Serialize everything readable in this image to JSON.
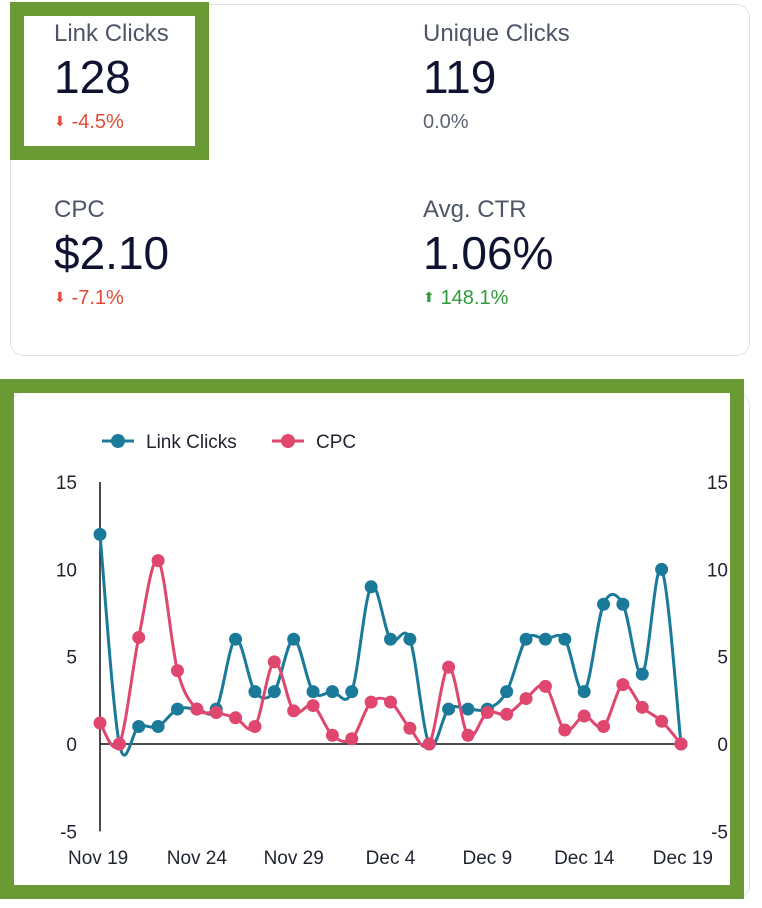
{
  "metrics": {
    "link_clicks": {
      "label": "Link Clicks",
      "value": "128",
      "change": "-4.5%",
      "direction": "down"
    },
    "unique_clicks": {
      "label": "Unique Clicks",
      "value": "119",
      "change": "0.0%",
      "direction": "none"
    },
    "cpc": {
      "label": "CPC",
      "value": "$2.10",
      "change": "-7.1%",
      "direction": "down"
    },
    "avg_ctr": {
      "label": "Avg. CTR",
      "value": "1.06%",
      "change": "148.1%",
      "direction": "up"
    }
  },
  "colors": {
    "link_clicks": "#1b7a9a",
    "cpc": "#e0476f",
    "negative": "#e24a36",
    "positive": "#2f9a3b",
    "highlight": "#6a9a33"
  },
  "chart_data": {
    "type": "line",
    "x": [
      "Nov 19",
      "Nov 20",
      "Nov 21",
      "Nov 22",
      "Nov 23",
      "Nov 24",
      "Nov 25",
      "Nov 26",
      "Nov 27",
      "Nov 28",
      "Nov 29",
      "Nov 30",
      "Dec 1",
      "Dec 2",
      "Dec 3",
      "Dec 4",
      "Dec 5",
      "Dec 6",
      "Dec 7",
      "Dec 8",
      "Dec 9",
      "Dec 10",
      "Dec 11",
      "Dec 12",
      "Dec 13",
      "Dec 14",
      "Dec 15",
      "Dec 16",
      "Dec 17",
      "Dec 18",
      "Dec 19"
    ],
    "x_tick_labels": [
      "Nov 19",
      "Nov 24",
      "Nov 29",
      "Dec 4",
      "Dec 9",
      "Dec 14",
      "Dec 19"
    ],
    "series": [
      {
        "name": "Link Clicks",
        "values": [
          12,
          0,
          1,
          1,
          2,
          2,
          2,
          6,
          3,
          3,
          6,
          3,
          3,
          3,
          9,
          6,
          6,
          0,
          2,
          2,
          2,
          3,
          6,
          6,
          6,
          3,
          8,
          8,
          4,
          10,
          0
        ]
      },
      {
        "name": "CPC",
        "values": [
          1.2,
          0,
          6.1,
          10.5,
          4.2,
          2,
          1.8,
          1.5,
          1,
          4.7,
          1.9,
          2.2,
          0.5,
          0.3,
          2.4,
          2.4,
          0.9,
          0,
          4.4,
          0.5,
          1.8,
          1.7,
          2.6,
          3.3,
          0.8,
          1.6,
          1,
          3.4,
          2.1,
          1.3,
          0
        ]
      }
    ],
    "y_ticks": [
      "15",
      "10",
      "5",
      "0",
      "-5"
    ],
    "ylim": [
      -5,
      15
    ],
    "legend": "top-left",
    "title": "",
    "xlabel": "",
    "ylabel": ""
  }
}
